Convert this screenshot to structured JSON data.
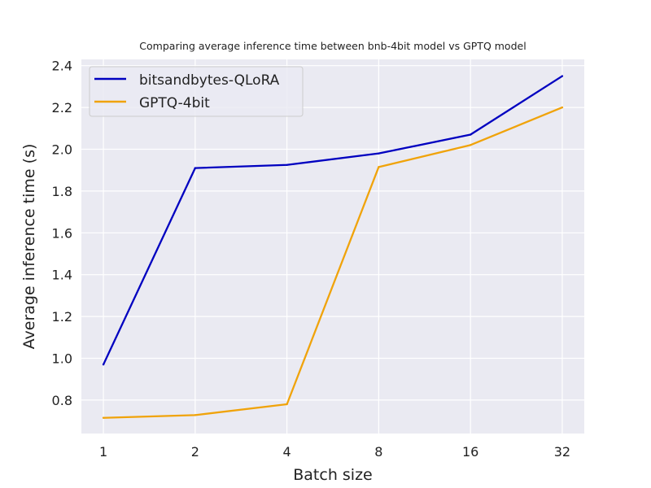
{
  "chart_data": {
    "type": "line",
    "title": "Comparing average inference time between bnb-4bit model vs GPTQ model",
    "xlabel": "Batch size",
    "ylabel": "Average inference time (s)",
    "categories": [
      "1",
      "2",
      "4",
      "8",
      "16",
      "32"
    ],
    "ylim": [
      0.64,
      2.43
    ],
    "yticks": [
      "0.8",
      "1.0",
      "1.2",
      "1.4",
      "1.6",
      "1.8",
      "2.0",
      "2.2",
      "2.4"
    ],
    "grid": true,
    "legend_position": "top-left",
    "background_color": "#eaeaf2",
    "series": [
      {
        "name": "bitsandbytes-QLoRA",
        "color": "#0000c0",
        "values": [
          0.97,
          1.91,
          1.925,
          1.98,
          2.07,
          2.35
        ]
      },
      {
        "name": "GPTQ-4bit",
        "color": "#f0a30a",
        "values": [
          0.715,
          0.728,
          0.78,
          1.915,
          2.02,
          2.2
        ]
      }
    ]
  }
}
